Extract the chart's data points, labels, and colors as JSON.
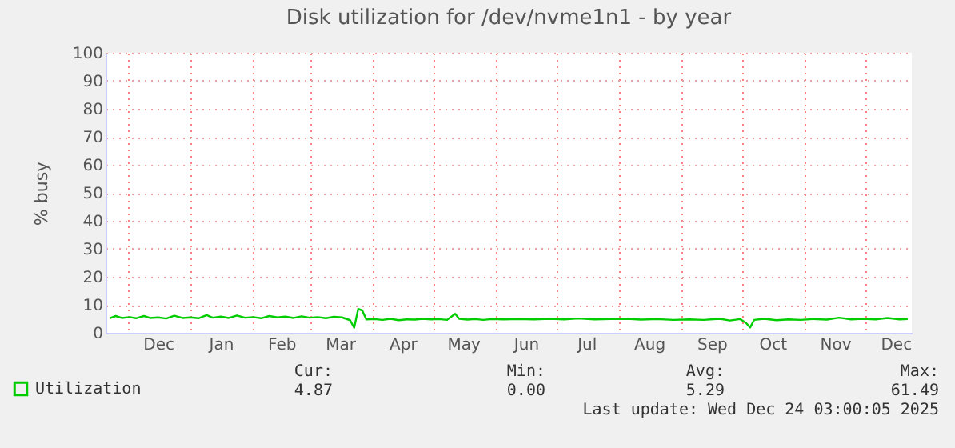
{
  "chart_data": {
    "type": "line",
    "title": "Disk utilization for /dev/nvme1n1 - by year",
    "ylabel": "% busy",
    "x": [
      "2024-11-22",
      "2024-11-25",
      "2024-11-28",
      "2024-12-02",
      "2024-12-05",
      "2024-12-09",
      "2024-12-12",
      "2024-12-16",
      "2024-12-20",
      "2024-12-24",
      "2024-12-28",
      "2025-01-01",
      "2025-01-05",
      "2025-01-09",
      "2025-01-12",
      "2025-01-16",
      "2025-01-20",
      "2025-01-24",
      "2025-01-28",
      "2025-02-01",
      "2025-02-05",
      "2025-02-09",
      "2025-02-13",
      "2025-02-17",
      "2025-02-21",
      "2025-02-25",
      "2025-03-01",
      "2025-03-05",
      "2025-03-09",
      "2025-03-13",
      "2025-03-17",
      "2025-03-21",
      "2025-03-23",
      "2025-03-25",
      "2025-03-27",
      "2025-03-29",
      "2025-04-02",
      "2025-04-06",
      "2025-04-10",
      "2025-04-14",
      "2025-04-18",
      "2025-04-22",
      "2025-04-26",
      "2025-04-30",
      "2025-05-04",
      "2025-05-08",
      "2025-05-12",
      "2025-05-14",
      "2025-05-18",
      "2025-05-22",
      "2025-05-26",
      "2025-05-30",
      "2025-06-05",
      "2025-06-12",
      "2025-06-20",
      "2025-06-28",
      "2025-07-05",
      "2025-07-12",
      "2025-07-20",
      "2025-07-28",
      "2025-08-05",
      "2025-08-12",
      "2025-08-20",
      "2025-08-28",
      "2025-09-05",
      "2025-09-12",
      "2025-09-20",
      "2025-09-25",
      "2025-09-30",
      "2025-10-03",
      "2025-10-05",
      "2025-10-07",
      "2025-10-12",
      "2025-10-18",
      "2025-10-24",
      "2025-10-30",
      "2025-11-05",
      "2025-11-12",
      "2025-11-18",
      "2025-11-24",
      "2025-11-30",
      "2025-12-06",
      "2025-12-12",
      "2025-12-18",
      "2025-12-22"
    ],
    "series": [
      {
        "name": "Utilization",
        "color": "#00cc00",
        "values": [
          5.2,
          6.0,
          5.3,
          5.6,
          5.2,
          6.0,
          5.3,
          5.5,
          5.1,
          6.1,
          5.3,
          5.5,
          5.2,
          6.3,
          5.4,
          5.8,
          5.3,
          6.2,
          5.4,
          5.6,
          5.2,
          6.0,
          5.5,
          5.8,
          5.3,
          5.9,
          5.4,
          5.6,
          5.2,
          5.7,
          5.5,
          4.5,
          1.8,
          8.5,
          8.0,
          4.8,
          4.9,
          4.6,
          5.0,
          4.5,
          4.8,
          4.7,
          5.0,
          4.8,
          4.9,
          4.6,
          6.8,
          5.0,
          4.7,
          4.9,
          4.6,
          4.9,
          4.8,
          4.9,
          4.8,
          5.0,
          4.8,
          5.1,
          4.8,
          4.9,
          5.0,
          4.7,
          4.9,
          4.6,
          4.8,
          4.6,
          5.0,
          4.4,
          4.9,
          3.5,
          1.9,
          4.6,
          5.0,
          4.5,
          4.8,
          4.6,
          4.9,
          4.7,
          5.4,
          4.8,
          5.0,
          4.8,
          5.3,
          4.8,
          4.9
        ]
      }
    ],
    "xlim": [
      "2024-11-20",
      "2025-12-24"
    ],
    "xticks": [
      {
        "value": "2024-12-01",
        "label": null
      },
      {
        "value": "2024-12-16",
        "label": "Dec"
      },
      {
        "value": "2025-01-01",
        "label": null
      },
      {
        "value": "2025-01-16",
        "label": "Jan"
      },
      {
        "value": "2025-02-01",
        "label": null
      },
      {
        "value": "2025-02-15",
        "label": "Feb"
      },
      {
        "value": "2025-03-01",
        "label": null
      },
      {
        "value": "2025-03-16",
        "label": "Mar"
      },
      {
        "value": "2025-04-01",
        "label": null
      },
      {
        "value": "2025-04-16",
        "label": "Apr"
      },
      {
        "value": "2025-05-01",
        "label": null
      },
      {
        "value": "2025-05-16",
        "label": "May"
      },
      {
        "value": "2025-06-01",
        "label": null
      },
      {
        "value": "2025-06-16",
        "label": "Jun"
      },
      {
        "value": "2025-07-01",
        "label": null
      },
      {
        "value": "2025-07-16",
        "label": "Jul"
      },
      {
        "value": "2025-08-01",
        "label": null
      },
      {
        "value": "2025-08-16",
        "label": "Aug"
      },
      {
        "value": "2025-09-01",
        "label": null
      },
      {
        "value": "2025-09-16",
        "label": "Sep"
      },
      {
        "value": "2025-10-01",
        "label": null
      },
      {
        "value": "2025-10-16",
        "label": "Oct"
      },
      {
        "value": "2025-11-01",
        "label": null
      },
      {
        "value": "2025-11-16",
        "label": "Nov"
      },
      {
        "value": "2025-12-01",
        "label": null
      },
      {
        "value": "2025-12-16",
        "label": "Dec"
      }
    ],
    "ylim": [
      0,
      100
    ],
    "yticks": [
      0,
      10,
      20,
      30,
      40,
      50,
      60,
      70,
      80,
      90,
      100
    ],
    "grid": true,
    "legend": "bottom",
    "marker": "none",
    "line_style": "solid",
    "annotations": [
      "Cur:",
      "Min:",
      "Avg:",
      "Max:",
      "4.87",
      "0.00",
      "5.29",
      "61.49",
      "Last update: Wed Dec 24 03:00:05 2025"
    ]
  }
}
